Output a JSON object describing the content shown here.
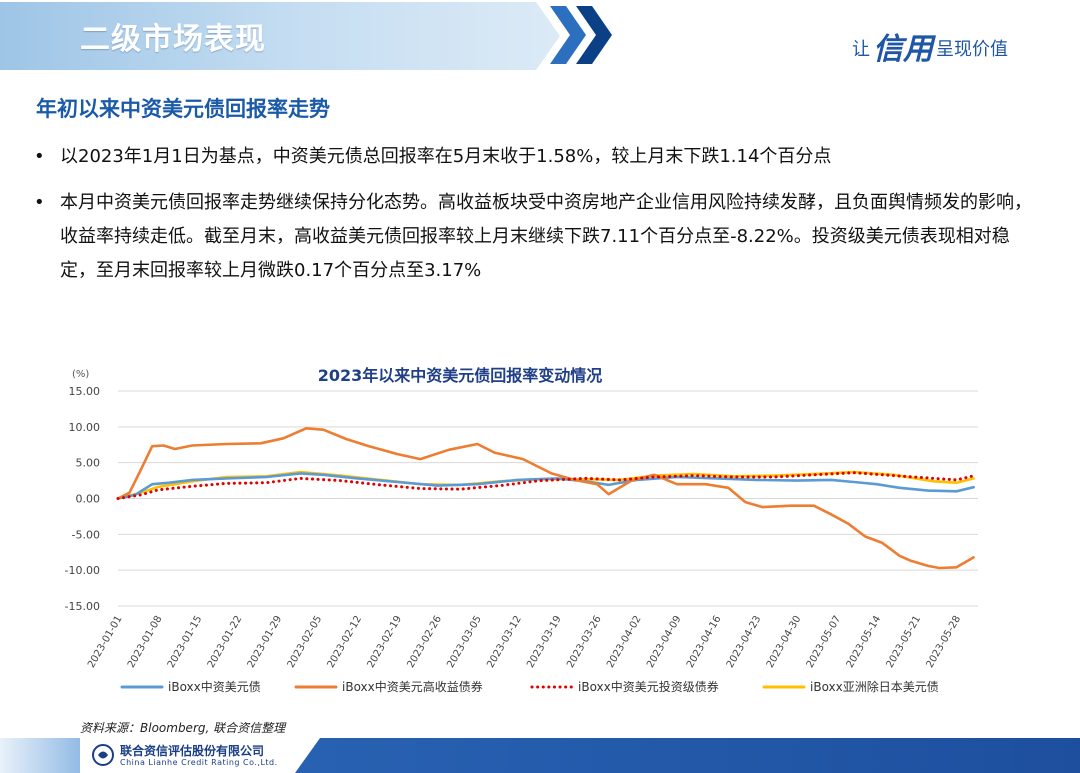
{
  "header": {
    "section_title": "二级市场表现",
    "slogan_pre": "让",
    "slogan_big": "信用",
    "slogan_post": "呈现价值"
  },
  "slide": {
    "title": "年初以来中资美元债回报率走势",
    "bullets": [
      "以2023年1月1日为基点，中资美元债总回报率在5月末收于1.58%，较上月末下跌1.14个百分点",
      "本月中资美元债回报率走势继续保持分化态势。高收益板块受中资房地产企业信用风险持续发酵，且负面舆情频发的影响，收益率持续走低。截至月末，高收益美元债回报率较上月末继续下跌7.11个百分点至-8.22%。投资级美元债表现相对稳定，至月末回报率较上月微跌0.17个百分点至3.17%"
    ],
    "bullet_marker": "•"
  },
  "source": "资料来源：Bloomberg, 联合资信整理",
  "footer": {
    "company_cn": "联合资信评估股份有限公司",
    "company_en": "China Lianhe Credit Rating Co.,Ltd."
  },
  "colors": {
    "title_blue": "#1b5aa8",
    "overall": "#5b9bd5",
    "high_yield": "#ed7d31",
    "investment_grade": "#e00000",
    "asia_ex_japan": "#ffc000"
  },
  "chart_data": {
    "type": "line",
    "title": "2023年以来中资美元债回报率变动情况",
    "unit_label": "(%)",
    "ylim": [
      -15,
      15
    ],
    "yticks": [
      "15.00",
      "10.00",
      "5.00",
      "0.00",
      "-5.00",
      "-10.00",
      "-15.00"
    ],
    "x_ticks": [
      "2023-01-01",
      "2023-01-08",
      "2023-01-15",
      "2023-01-22",
      "2023-01-29",
      "2023-02-05",
      "2023-02-12",
      "2023-02-19",
      "2023-02-26",
      "2023-03-05",
      "2023-03-12",
      "2023-03-19",
      "2023-03-26",
      "2023-04-02",
      "2023-04-09",
      "2023-04-16",
      "2023-04-23",
      "2023-04-30",
      "2023-05-07",
      "2023-05-14",
      "2023-05-21",
      "2023-05-28"
    ],
    "grid": true,
    "legend_position": "bottom",
    "series": [
      {
        "name": "iBoxx中资美元债",
        "style": "solid",
        "points": [
          [
            "2023-01-01",
            0
          ],
          [
            "2023-01-04",
            0.5
          ],
          [
            "2023-01-07",
            2.0
          ],
          [
            "2023-01-10",
            2.2
          ],
          [
            "2023-01-14",
            2.6
          ],
          [
            "2023-01-20",
            2.8
          ],
          [
            "2023-01-27",
            3.0
          ],
          [
            "2023-02-02",
            3.5
          ],
          [
            "2023-02-06",
            3.3
          ],
          [
            "2023-02-12",
            2.8
          ],
          [
            "2023-02-19",
            2.3
          ],
          [
            "2023-02-26",
            1.8
          ],
          [
            "2023-03-05",
            2.0
          ],
          [
            "2023-03-12",
            2.6
          ],
          [
            "2023-03-19",
            2.8
          ],
          [
            "2023-03-24",
            2.4
          ],
          [
            "2023-03-28",
            1.9
          ],
          [
            "2023-04-02",
            2.6
          ],
          [
            "2023-04-09",
            3.0
          ],
          [
            "2023-04-16",
            2.8
          ],
          [
            "2023-04-23",
            2.6
          ],
          [
            "2023-04-30",
            2.5
          ],
          [
            "2023-05-06",
            2.6
          ],
          [
            "2023-05-10",
            2.3
          ],
          [
            "2023-05-14",
            2.0
          ],
          [
            "2023-05-18",
            1.5
          ],
          [
            "2023-05-23",
            1.1
          ],
          [
            "2023-05-28",
            1.0
          ],
          [
            "2023-05-31",
            1.58
          ]
        ]
      },
      {
        "name": "iBoxx中资美元高收益债券",
        "style": "solid",
        "points": [
          [
            "2023-01-01",
            0
          ],
          [
            "2023-01-03",
            0.8
          ],
          [
            "2023-01-05",
            4.0
          ],
          [
            "2023-01-07",
            7.3
          ],
          [
            "2023-01-09",
            7.4
          ],
          [
            "2023-01-11",
            6.9
          ],
          [
            "2023-01-14",
            7.4
          ],
          [
            "2023-01-20",
            7.6
          ],
          [
            "2023-01-26",
            7.7
          ],
          [
            "2023-01-30",
            8.4
          ],
          [
            "2023-02-03",
            9.8
          ],
          [
            "2023-02-06",
            9.6
          ],
          [
            "2023-02-10",
            8.3
          ],
          [
            "2023-02-14",
            7.3
          ],
          [
            "2023-02-19",
            6.2
          ],
          [
            "2023-02-23",
            5.5
          ],
          [
            "2023-02-28",
            6.8
          ],
          [
            "2023-03-05",
            7.6
          ],
          [
            "2023-03-08",
            6.4
          ],
          [
            "2023-03-13",
            5.5
          ],
          [
            "2023-03-18",
            3.5
          ],
          [
            "2023-03-22",
            2.6
          ],
          [
            "2023-03-26",
            2.0
          ],
          [
            "2023-03-28",
            0.6
          ],
          [
            "2023-04-01",
            2.5
          ],
          [
            "2023-04-05",
            3.3
          ],
          [
            "2023-04-09",
            2.0
          ],
          [
            "2023-04-14",
            2.0
          ],
          [
            "2023-04-18",
            1.5
          ],
          [
            "2023-04-21",
            -0.5
          ],
          [
            "2023-04-24",
            -1.2
          ],
          [
            "2023-04-29",
            -1.0
          ],
          [
            "2023-05-03",
            -1.0
          ],
          [
            "2023-05-06",
            -2.2
          ],
          [
            "2023-05-09",
            -3.5
          ],
          [
            "2023-05-12",
            -5.3
          ],
          [
            "2023-05-15",
            -6.2
          ],
          [
            "2023-05-18",
            -8.0
          ],
          [
            "2023-05-20",
            -8.7
          ],
          [
            "2023-05-23",
            -9.4
          ],
          [
            "2023-05-25",
            -9.7
          ],
          [
            "2023-05-28",
            -9.6
          ],
          [
            "2023-05-31",
            -8.22
          ]
        ]
      },
      {
        "name": "iBoxx中资美元投资级债券",
        "style": "dotted",
        "points": [
          [
            "2023-01-01",
            0
          ],
          [
            "2023-01-05",
            0.5
          ],
          [
            "2023-01-08",
            1.2
          ],
          [
            "2023-01-14",
            1.7
          ],
          [
            "2023-01-20",
            2.1
          ],
          [
            "2023-01-27",
            2.2
          ],
          [
            "2023-02-02",
            2.8
          ],
          [
            "2023-02-09",
            2.5
          ],
          [
            "2023-02-16",
            1.9
          ],
          [
            "2023-02-23",
            1.4
          ],
          [
            "2023-03-02",
            1.3
          ],
          [
            "2023-03-09",
            1.8
          ],
          [
            "2023-03-16",
            2.5
          ],
          [
            "2023-03-24",
            2.8
          ],
          [
            "2023-03-30",
            2.6
          ],
          [
            "2023-04-05",
            3.0
          ],
          [
            "2023-04-12",
            3.2
          ],
          [
            "2023-04-19",
            3.0
          ],
          [
            "2023-04-26",
            3.0
          ],
          [
            "2023-05-03",
            3.3
          ],
          [
            "2023-05-10",
            3.6
          ],
          [
            "2023-05-17",
            3.2
          ],
          [
            "2023-05-24",
            2.8
          ],
          [
            "2023-05-28",
            2.6
          ],
          [
            "2023-05-31",
            3.17
          ]
        ]
      },
      {
        "name": "iBoxx亚洲除日本美元债",
        "style": "solid",
        "points": [
          [
            "2023-01-01",
            0
          ],
          [
            "2023-01-05",
            0.8
          ],
          [
            "2023-01-08",
            1.6
          ],
          [
            "2023-01-14",
            2.4
          ],
          [
            "2023-01-20",
            3.0
          ],
          [
            "2023-01-27",
            3.1
          ],
          [
            "2023-02-02",
            3.7
          ],
          [
            "2023-02-09",
            3.2
          ],
          [
            "2023-02-16",
            2.6
          ],
          [
            "2023-02-23",
            2.0
          ],
          [
            "2023-03-02",
            1.9
          ],
          [
            "2023-03-09",
            2.4
          ],
          [
            "2023-03-16",
            2.7
          ],
          [
            "2023-03-24",
            2.7
          ],
          [
            "2023-03-30",
            2.6
          ],
          [
            "2023-04-05",
            3.2
          ],
          [
            "2023-04-12",
            3.4
          ],
          [
            "2023-04-19",
            3.1
          ],
          [
            "2023-04-26",
            3.2
          ],
          [
            "2023-05-03",
            3.4
          ],
          [
            "2023-05-10",
            3.7
          ],
          [
            "2023-05-17",
            3.3
          ],
          [
            "2023-05-24",
            2.4
          ],
          [
            "2023-05-28",
            2.2
          ],
          [
            "2023-05-31",
            2.8
          ]
        ]
      }
    ]
  }
}
